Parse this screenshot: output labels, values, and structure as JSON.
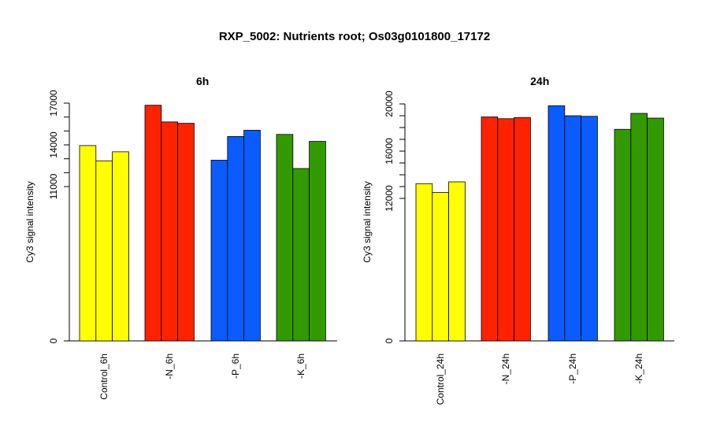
{
  "title": "RXP_5002: Nutrients root; Os03g0101800_17172",
  "chart_data": [
    {
      "type": "bar",
      "title": "6h",
      "ylabel": "Cy3 signal intensity",
      "ylim": [
        0,
        17000
      ],
      "y_scale": "nonlinear (0 to 11000 compressed)",
      "ytick_labels": [
        "0",
        "11000",
        "14000",
        "17000"
      ],
      "categories": [
        "Control_6h",
        "-N_6h",
        "-P_6h",
        "-K_6h"
      ],
      "colors": [
        "#ffff00",
        "#ff2200",
        "#0a5cff",
        "#339900"
      ],
      "groups": [
        {
          "category": "Control_6h",
          "values": [
            13950,
            12850,
            13500
          ]
        },
        {
          "category": "-N_6h",
          "values": [
            16850,
            15650,
            15550
          ]
        },
        {
          "category": "-P_6h",
          "values": [
            12900,
            14600,
            15050
          ]
        },
        {
          "category": "-K_6h",
          "values": [
            14750,
            12300,
            14250
          ]
        }
      ]
    },
    {
      "type": "bar",
      "title": "24h",
      "ylabel": "Cy3 signal intensity",
      "ylim": [
        0,
        20000
      ],
      "y_scale": "nonlinear (0 to 12000 compressed)",
      "ytick_labels": [
        "0",
        "12000",
        "16000",
        "20000"
      ],
      "categories": [
        "Control_24h",
        "-N_24h",
        "-P_24h",
        "-K_24h"
      ],
      "colors": [
        "#ffff00",
        "#ff2200",
        "#0a5cff",
        "#339900"
      ],
      "groups": [
        {
          "category": "Control_24h",
          "values": [
            13250,
            12500,
            13400
          ]
        },
        {
          "category": "-N_24h",
          "values": [
            18900,
            18750,
            18850
          ]
        },
        {
          "category": "-P_24h",
          "values": [
            19850,
            19000,
            18950
          ]
        },
        {
          "category": "-K_24h",
          "values": [
            17850,
            19200,
            18800
          ]
        }
      ]
    }
  ]
}
